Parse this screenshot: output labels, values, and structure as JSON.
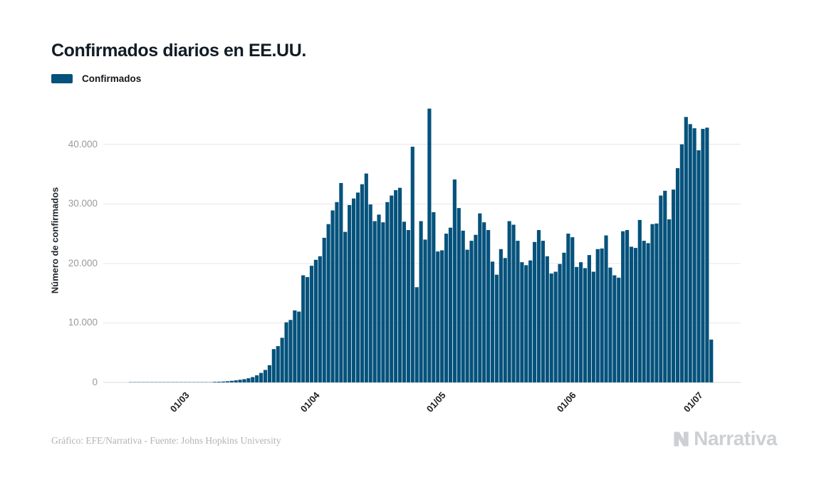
{
  "page": {
    "background": "#ffffff"
  },
  "chart_data": {
    "type": "bar",
    "title": "Confirmados diarios en EE.UU.",
    "series_name": "Confirmados",
    "bar_color": "#05527c",
    "grid_color": "#e7e7e7",
    "axis_line_color": "#d9d9d9",
    "xlabel": "",
    "ylabel": "Número de confirmados",
    "legend_position": "top-left",
    "grid": "horizontal",
    "x_start_date": "2020-02-08",
    "x_end_date": "2020-07-01",
    "x_tick_labels": [
      "01/03",
      "01/04",
      "01/05",
      "01/06",
      "01/07"
    ],
    "x_tick_date_indices": [
      22,
      53,
      83,
      114,
      144
    ],
    "y_ticks": [
      0,
      10000,
      20000,
      30000,
      40000
    ],
    "y_tick_labels": [
      "0",
      "10.000",
      "20.000",
      "30.000",
      "40.000"
    ],
    "ylim": [
      0,
      47500
    ],
    "values": [
      0,
      0,
      0,
      0,
      0,
      0,
      10,
      10,
      10,
      10,
      15,
      15,
      15,
      15,
      20,
      20,
      20,
      20,
      25,
      25,
      25,
      30,
      30,
      40,
      60,
      80,
      100,
      120,
      150,
      200,
      270,
      350,
      450,
      550,
      700,
      900,
      1200,
      1600,
      2100,
      2900,
      5600,
      6100,
      7500,
      10100,
      10500,
      12100,
      11900,
      18000,
      17700,
      19600,
      20600,
      21200,
      24300,
      26600,
      28900,
      30300,
      33500,
      25300,
      29800,
      30900,
      31900,
      33300,
      35100,
      29900,
      27100,
      28200,
      26900,
      30300,
      31400,
      32300,
      32700,
      27000,
      25600,
      39600,
      16000,
      27100,
      24000,
      46000,
      28600,
      22000,
      22200,
      25000,
      26000,
      34100,
      29300,
      25500,
      22300,
      23800,
      24800,
      28400,
      26900,
      25600,
      20300,
      18100,
      22400,
      20900,
      27100,
      26500,
      23800,
      20200,
      19700,
      20500,
      23600,
      25600,
      23800,
      21200,
      18300,
      18600,
      19900,
      21800,
      25000,
      24400,
      19400,
      20200,
      19200,
      21400,
      18600,
      22400,
      22500,
      24700,
      19300,
      18000,
      17600,
      25400,
      25600,
      22800,
      22600,
      27300,
      23800,
      23400,
      26600,
      26700,
      31400,
      32200,
      27400,
      32400,
      36000,
      40000,
      44600,
      43400,
      42700,
      39000,
      42600,
      42800,
      7200
    ]
  },
  "footer": {
    "credit": "Gráfico: EFE/Narrativa - Fuente: Johns Hopkins University",
    "brand": "Narrativa"
  }
}
